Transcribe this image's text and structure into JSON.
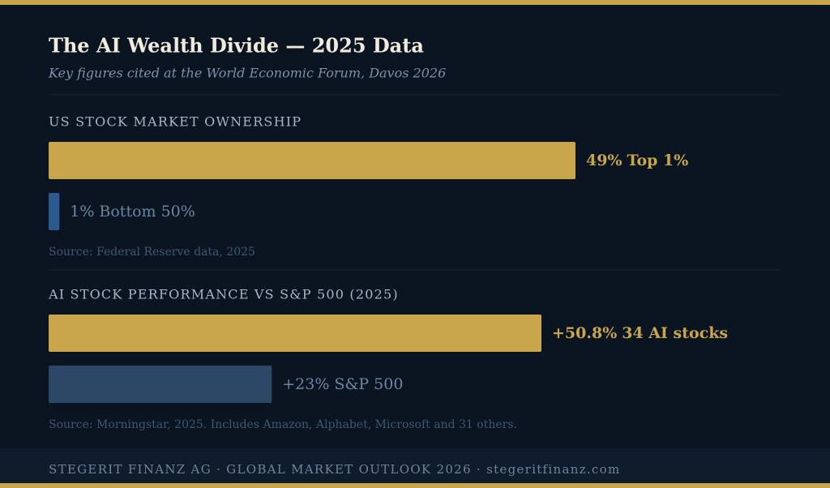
{
  "header": {
    "title": "The AI Wealth Divide — 2025 Data",
    "subtitle": "Key figures cited at the World Economic Forum, Davos 2026"
  },
  "chart_data": [
    {
      "type": "bar",
      "orientation": "horizontal",
      "title": "US STOCK MARKET OWNERSHIP",
      "categories": [
        "Top 1%",
        "Bottom 50%"
      ],
      "values": [
        49,
        1
      ],
      "value_labels": [
        "49%",
        "1%"
      ],
      "colors": [
        "#c9a54b",
        "#2d5a8c"
      ],
      "source": "Source: Federal Reserve data, 2025"
    },
    {
      "type": "bar",
      "orientation": "horizontal",
      "title": "AI STOCK PERFORMANCE VS S&P 500 (2025)",
      "categories": [
        "34 AI stocks",
        "S&P 500"
      ],
      "values": [
        50.8,
        23
      ],
      "value_labels": [
        "+50.8%",
        "+23%"
      ],
      "colors": [
        "#c9a54b",
        "#2c4866"
      ],
      "source": "Source: Morningstar, 2025. Includes Amazon, Alphabet, Microsoft and 31 others."
    }
  ],
  "footer": "STEGERIT FINANZ AG · GLOBAL MARKET OUTLOOK 2026 · stegeritfinanz.com"
}
